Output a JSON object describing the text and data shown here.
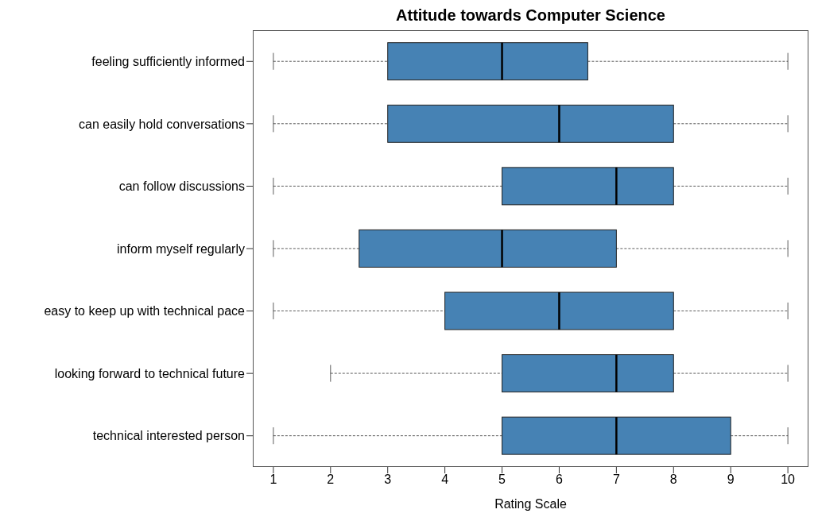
{
  "chart_data": {
    "type": "box",
    "orientation": "horizontal",
    "title": "Attitude towards Computer Science",
    "xlabel": "Rating Scale",
    "categories": [
      "feeling sufficiently informed",
      "can easily hold conversations",
      "can follow discussions",
      "inform myself regularly",
      "easy to keep up with technical pace",
      "looking forward to technical future",
      "technical interested person"
    ],
    "color": "#4682b4",
    "boxes": [
      {
        "low": 1,
        "q1": 3,
        "median": 5,
        "q3": 6.5,
        "high": 10
      },
      {
        "low": 1,
        "q1": 3,
        "median": 6,
        "q3": 8,
        "high": 10
      },
      {
        "low": 1,
        "q1": 5,
        "median": 7,
        "q3": 8,
        "high": 10
      },
      {
        "low": 1,
        "q1": 2.5,
        "median": 5,
        "q3": 7,
        "high": 10
      },
      {
        "low": 1,
        "q1": 4,
        "median": 6,
        "q3": 8,
        "high": 10
      },
      {
        "low": 2,
        "q1": 5,
        "median": 7,
        "q3": 8,
        "high": 10
      },
      {
        "low": 1,
        "q1": 5,
        "median": 7,
        "q3": 9,
        "high": 10
      }
    ],
    "xlim": [
      0.64,
      10.36
    ],
    "xticks": [
      1,
      2,
      3,
      4,
      5,
      6,
      7,
      8,
      9,
      10
    ]
  }
}
